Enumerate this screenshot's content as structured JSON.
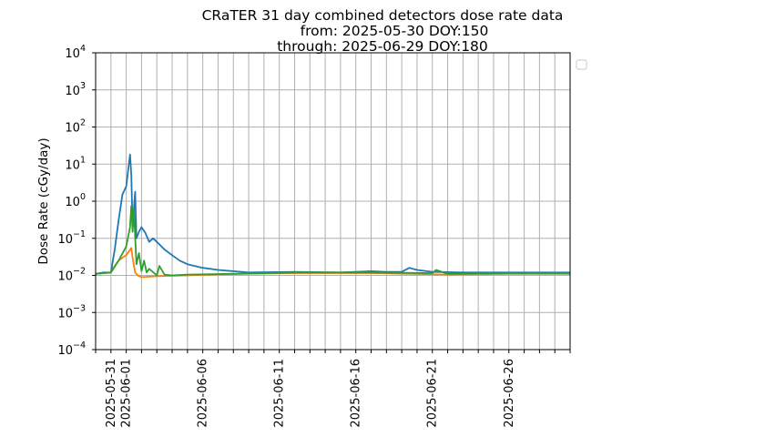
{
  "chart_data": {
    "type": "line",
    "title_lines": [
      "CRaTER 31 day combined detectors dose rate data",
      "from: 2025-05-30 DOY:150",
      "through: 2025-06-29 DOY:180"
    ],
    "xlabel": "",
    "ylabel": "Dose Rate (cGy/day)",
    "y_scale": "log",
    "ylim": [
      0.0001,
      10000
    ],
    "y_ticks": [
      {
        "base": "10",
        "exp": "4",
        "value": 10000
      },
      {
        "base": "10",
        "exp": "3",
        "value": 1000
      },
      {
        "base": "10",
        "exp": "2",
        "value": 100
      },
      {
        "base": "10",
        "exp": "1",
        "value": 10
      },
      {
        "base": "10",
        "exp": "0",
        "value": 1
      },
      {
        "base": "10",
        "exp": "−1",
        "value": 0.1
      },
      {
        "base": "10",
        "exp": "−2",
        "value": 0.01
      },
      {
        "base": "10",
        "exp": "−3",
        "value": 0.001
      },
      {
        "base": "10",
        "exp": "−4",
        "value": 0.0001
      }
    ],
    "xlim": [
      "2025-05-30",
      "2025-06-30"
    ],
    "x_tick_labels": [
      "2025-05-31",
      "2025-06-01",
      "2025-06-06",
      "2025-06-11",
      "2025-06-16",
      "2025-06-21",
      "2025-06-26"
    ],
    "grid": true,
    "legend": "top-right, empty",
    "series": [
      {
        "color": "#1f77b4",
        "x": [
          "2025-05-30",
          "2025-05-30T12:00",
          "2025-05-31",
          "2025-05-31T06:00",
          "2025-05-31T12:00",
          "2025-05-31T18:00",
          "2025-06-01",
          "2025-06-01T06:00",
          "2025-06-01T08:00",
          "2025-06-01T10:00",
          "2025-06-01T14:00",
          "2025-06-01T16:00",
          "2025-06-01T20:00",
          "2025-06-02",
          "2025-06-02T06:00",
          "2025-06-02T12:00",
          "2025-06-02T18:00",
          "2025-06-03",
          "2025-06-03T12:00",
          "2025-06-04",
          "2025-06-04T12:00",
          "2025-06-05",
          "2025-06-06",
          "2025-06-07",
          "2025-06-08",
          "2025-06-09",
          "2025-06-12",
          "2025-06-15",
          "2025-06-17",
          "2025-06-18",
          "2025-06-19",
          "2025-06-19T12:00",
          "2025-06-20",
          "2025-06-21",
          "2025-06-23",
          "2025-06-26",
          "2025-06-30"
        ],
        "values": [
          0.011,
          0.012,
          0.012,
          0.05,
          0.3,
          1.5,
          2.5,
          18,
          5,
          0.2,
          1.8,
          0.1,
          0.15,
          0.2,
          0.14,
          0.08,
          0.1,
          0.08,
          0.05,
          0.035,
          0.025,
          0.02,
          0.016,
          0.014,
          0.013,
          0.012,
          0.0125,
          0.012,
          0.013,
          0.0125,
          0.0125,
          0.016,
          0.014,
          0.0125,
          0.012,
          0.012,
          0.012
        ]
      },
      {
        "color": "#ff7f0e",
        "x": [
          "2025-05-30",
          "2025-05-31",
          "2025-05-31T06:00",
          "2025-05-31T12:00",
          "2025-05-31T18:00",
          "2025-06-01",
          "2025-06-01T08:00",
          "2025-06-01T10:00",
          "2025-06-01T14:00",
          "2025-06-01T18:00",
          "2025-06-02",
          "2025-06-03",
          "2025-06-05",
          "2025-06-08",
          "2025-06-12",
          "2025-06-17",
          "2025-06-22",
          "2025-06-26",
          "2025-06-30"
        ],
        "values": [
          0.011,
          0.012,
          0.018,
          0.025,
          0.03,
          0.035,
          0.055,
          0.03,
          0.012,
          0.01,
          0.009,
          0.0095,
          0.01,
          0.011,
          0.0115,
          0.0115,
          0.0105,
          0.011,
          0.011
        ]
      },
      {
        "color": "#2ca02c",
        "x": [
          "2025-05-30",
          "2025-05-31",
          "2025-05-31T12:00",
          "2025-06-01",
          "2025-06-01T06:00",
          "2025-06-01T08:00",
          "2025-06-01T10:00",
          "2025-06-01T12:00",
          "2025-06-01T16:00",
          "2025-06-01T20:00",
          "2025-06-02",
          "2025-06-02T04:00",
          "2025-06-02T08:00",
          "2025-06-02T12:00",
          "2025-06-03",
          "2025-06-03T04:00",
          "2025-06-03T12:00",
          "2025-06-04",
          "2025-06-05",
          "2025-06-08",
          "2025-06-12",
          "2025-06-17",
          "2025-06-21",
          "2025-06-21T06:00",
          "2025-06-22",
          "2025-06-26",
          "2025-06-30"
        ],
        "values": [
          0.011,
          0.012,
          0.025,
          0.06,
          0.2,
          0.75,
          0.15,
          0.6,
          0.02,
          0.04,
          0.013,
          0.025,
          0.012,
          0.015,
          0.01,
          0.018,
          0.0105,
          0.01,
          0.0105,
          0.011,
          0.012,
          0.012,
          0.0115,
          0.014,
          0.011,
          0.0115,
          0.0115
        ]
      }
    ]
  }
}
